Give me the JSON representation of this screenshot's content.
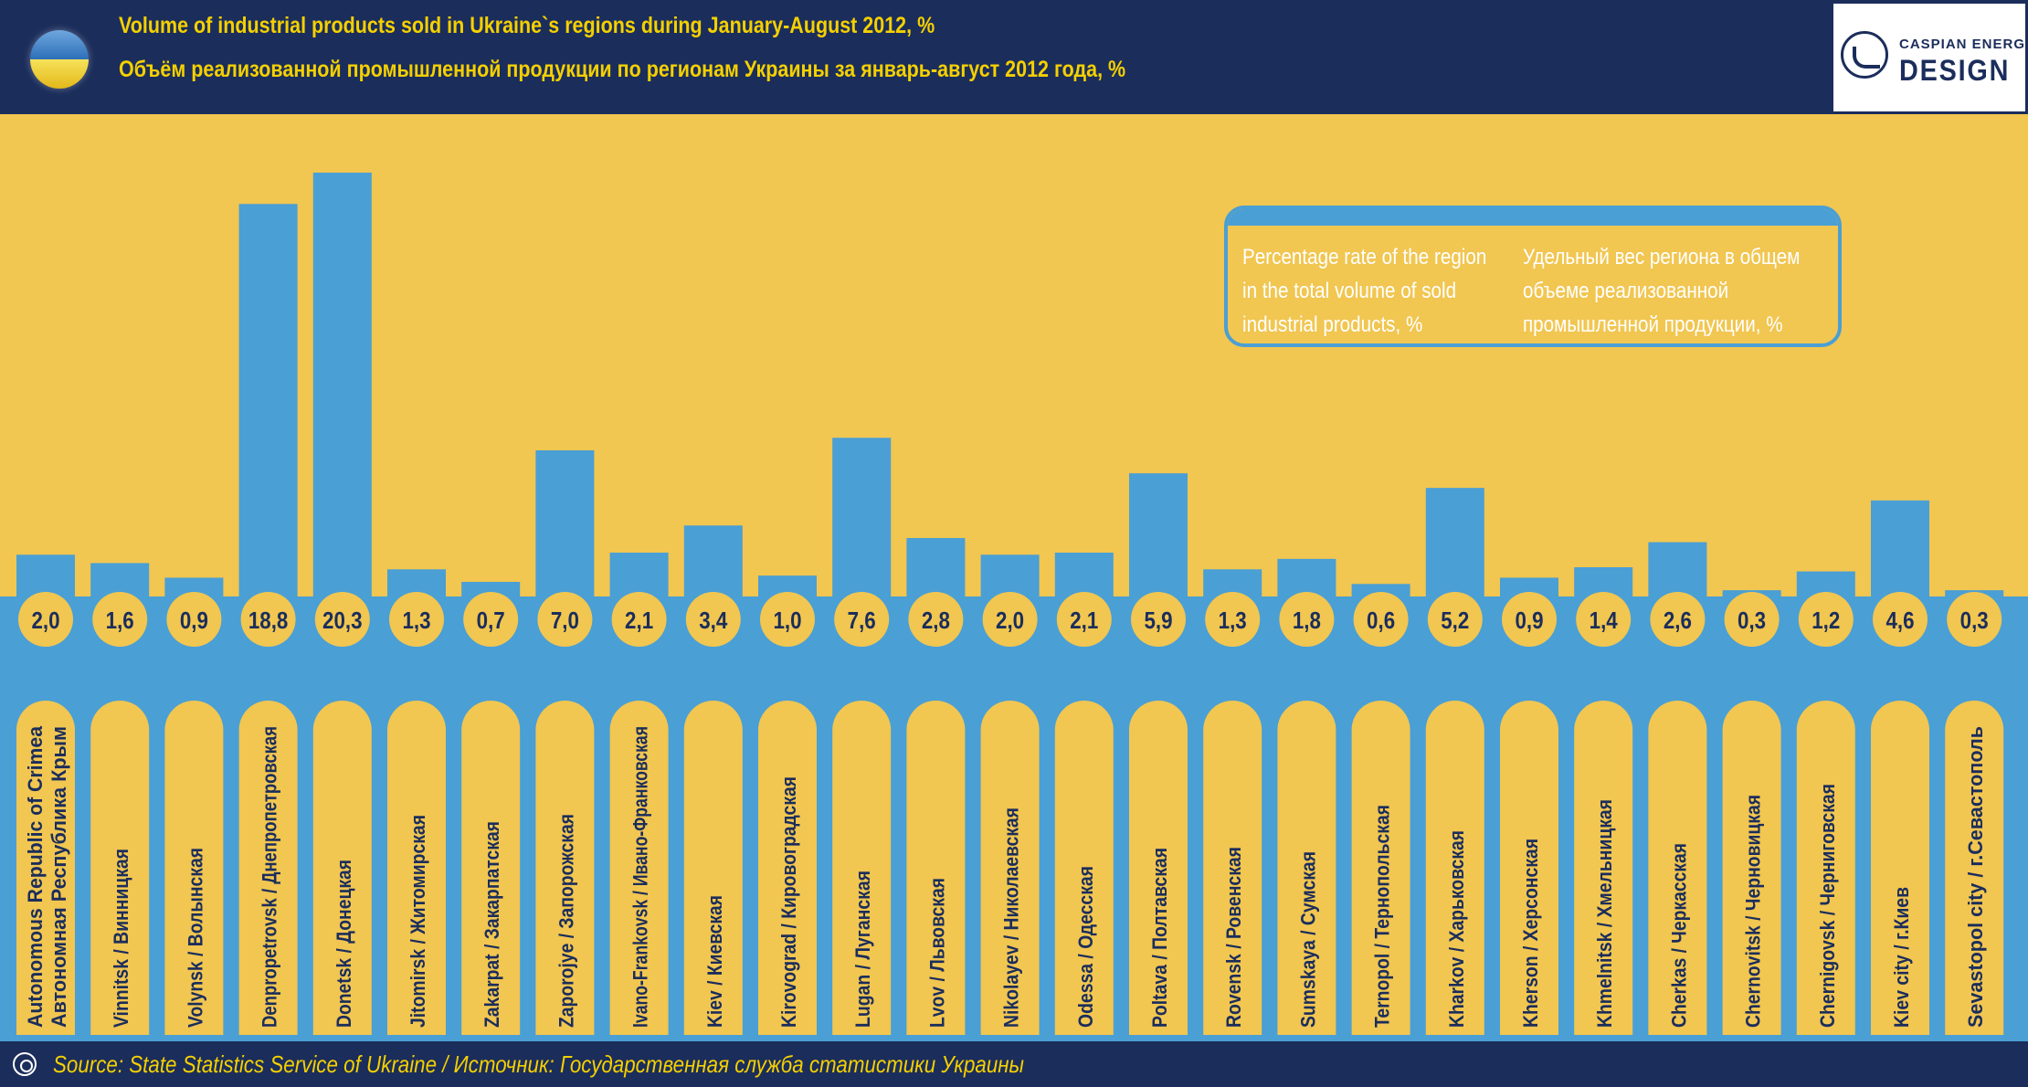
{
  "header": {
    "title_en": "Volume of industrial products sold in Ukraine`s regions during January-August 2012, %",
    "title_ru": "Объём реализованной промышленной продукции по регионам Украины за январь-август 2012 года, %",
    "flag_icon": "ukraine-flag-icon",
    "logo_top": "CASPIAN ENERGY",
    "logo_bottom": "DESIGN"
  },
  "legend": {
    "text_en": "Percentage rate of the region in the total volume of sold industrial products, %",
    "text_ru": "Удельный вес региона в общем объеме реализованной промышленной продукции, %"
  },
  "footer": {
    "source": "Source: State Statistics Service of Ukraine / Источник: Государственная служба статистики Украины"
  },
  "colors": {
    "background": "#f1c651",
    "bar": "#4a9fd5",
    "header": "#1b2d5b",
    "title": "#f4d000",
    "label_text": "#1b2d5b",
    "value_text": "#1b2d5b"
  },
  "chart_data": {
    "type": "bar",
    "categories": [
      "Autonomous Republic of Crimea\nАвтономная Республика Крым",
      "Vinnitsk / Винницкая",
      "Volynsk / Волынская",
      "Denpropetrovsk / Днепропетровская",
      "Donetsk / Донецкая",
      "Jitomirsk / Житомирская",
      "Zakarpat / Закарпатская",
      "Zaporojye / Запорожская",
      "Ivano-Frankovsk / Ивано-Франковская",
      "Kiev / Киевская",
      "Kirovograd / Кировоградская",
      "Lugan / Луганская",
      "Lvov / Львовская",
      "Nikolayev / Николаевская",
      "Odessa / Одесская",
      "Poltava / Полтавская",
      "Rovensk / Ровенская",
      "Sumskaya / Сумская",
      "Ternopol / Тернопольская",
      "Kharkov / Харьковская",
      "Kherson / Херсонская",
      "Khmelnitsk / Хмельницкая",
      "Cherkas / Черкасская",
      "Chernovitsk / Черновицкая",
      "Chernigovsk / Черниговская",
      "Kiev city / г.Киев",
      "Sevastopol city / г.Севастополь"
    ],
    "values": [
      2.0,
      1.6,
      0.9,
      18.8,
      20.3,
      1.3,
      0.7,
      7.0,
      2.1,
      3.4,
      1.0,
      7.6,
      2.8,
      2.0,
      2.1,
      5.9,
      1.3,
      1.8,
      0.6,
      5.2,
      0.9,
      1.4,
      2.6,
      0.3,
      1.2,
      4.6,
      0.3
    ],
    "value_labels": [
      "2,0",
      "1,6",
      "0,9",
      "18,8",
      "20,3",
      "1,3",
      "0,7",
      "7,0",
      "2,1",
      "3,4",
      "1,0",
      "7,6",
      "2,8",
      "2,0",
      "2,1",
      "5,9",
      "1,3",
      "1,8",
      "0,6",
      "5,2",
      "0,9",
      "1,4",
      "2,6",
      "0,3",
      "1,2",
      "4,6",
      "0,3"
    ],
    "title": "Volume of industrial products sold in Ukraine`s regions during January-August 2012, %",
    "xlabel": "",
    "ylabel": "",
    "grid": false
  }
}
